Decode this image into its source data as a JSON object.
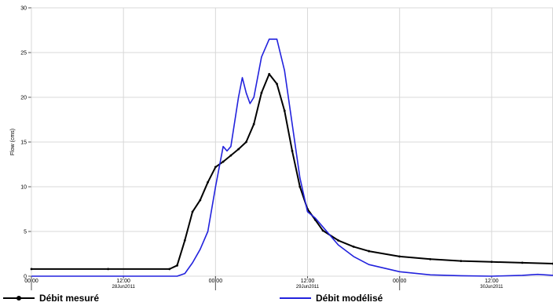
{
  "chart_data": {
    "type": "line",
    "title": "",
    "xlabel": "",
    "ylabel": "Flow (cms)",
    "xlim": [
      0,
      68
    ],
    "ylim": [
      0,
      30
    ],
    "yticks": [
      0,
      5,
      10,
      15,
      20,
      25,
      30
    ],
    "xticks": [
      {
        "x": 0,
        "label": "00:00",
        "date": ""
      },
      {
        "x": 12,
        "label": "12:00",
        "date": "28Jun2011"
      },
      {
        "x": 24,
        "label": "00:00",
        "date": ""
      },
      {
        "x": 36,
        "label": "12:00",
        "date": "29Jun2011"
      },
      {
        "x": 48,
        "label": "00:00",
        "date": ""
      },
      {
        "x": 60,
        "label": "12:00",
        "date": "30Jun2011"
      }
    ],
    "grid": true,
    "legend_position": "bottom",
    "series": [
      {
        "name": "Débit mesuré",
        "color": "#000000",
        "marker": "dot",
        "x": [
          0,
          10,
          18,
          19,
          20,
          21,
          22,
          23,
          24,
          25,
          26,
          27,
          28,
          29,
          30,
          31,
          32,
          33,
          34,
          35,
          36,
          37,
          38,
          40,
          42,
          44,
          48,
          52,
          56,
          60,
          64,
          68
        ],
        "y": [
          0.8,
          0.8,
          0.8,
          1.2,
          4.0,
          7.2,
          8.5,
          10.5,
          12.2,
          12.8,
          13.5,
          14.2,
          15.0,
          17.0,
          20.5,
          22.6,
          21.5,
          18.5,
          14.0,
          10.0,
          7.5,
          6.3,
          5.1,
          4.0,
          3.3,
          2.8,
          2.2,
          1.9,
          1.7,
          1.6,
          1.5,
          1.4
        ]
      },
      {
        "name": "Débit modélisé",
        "color": "#2222dd",
        "marker": "none",
        "x": [
          0,
          18,
          19,
          20,
          21,
          22,
          23,
          24,
          25,
          25.5,
          26,
          27,
          27.5,
          28,
          28.5,
          29,
          30,
          31,
          32,
          33,
          34,
          35,
          36,
          37,
          38,
          40,
          42,
          44,
          48,
          52,
          56,
          60,
          64,
          66,
          68
        ],
        "y": [
          0,
          0,
          0,
          0.3,
          1.5,
          3.0,
          5.0,
          10.0,
          14.5,
          14.0,
          14.5,
          20.0,
          22.2,
          20.5,
          19.3,
          20.0,
          24.5,
          26.5,
          26.5,
          23.0,
          17.0,
          11.0,
          7.2,
          6.5,
          5.5,
          3.5,
          2.2,
          1.3,
          0.5,
          0.15,
          0.05,
          0.0,
          0.1,
          0.2,
          0.1
        ]
      }
    ]
  }
}
